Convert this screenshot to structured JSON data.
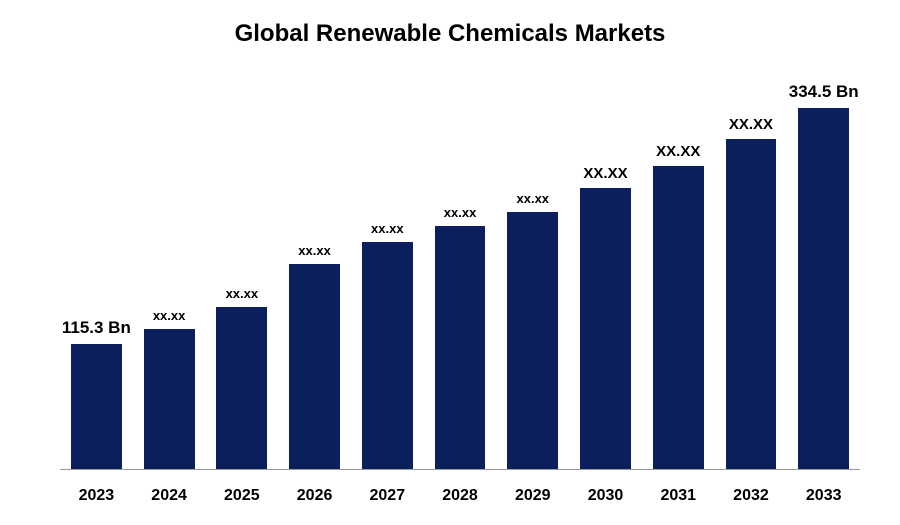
{
  "chart": {
    "type": "bar",
    "title": "Global Renewable Chemicals Markets",
    "title_fontsize": 24,
    "title_fontweight": 700,
    "title_color": "#000000",
    "background_color": "#ffffff",
    "bar_color": "#0a1f5c",
    "axis_line_color": "#999999",
    "ymax": 360,
    "ymin": 0,
    "bar_width_ratio": 0.7,
    "x_label_fontsize": 16,
    "x_label_fontweight": 700,
    "x_label_color": "#000000",
    "data_label_color": "#000000",
    "data_label_fontweight": 700,
    "first_last_label_fontsize": 17,
    "mid_label_fontsize_large": 15,
    "mid_label_fontsize_small": 13,
    "bars": [
      {
        "year": "2023",
        "value": 115.3,
        "label": "115.3 Bn",
        "label_fontsize": 17
      },
      {
        "year": "2024",
        "value": 130,
        "label": "xx.xx",
        "label_fontsize": 13
      },
      {
        "year": "2025",
        "value": 150,
        "label": "xx.xx",
        "label_fontsize": 13
      },
      {
        "year": "2026",
        "value": 190,
        "label": "xx.xx",
        "label_fontsize": 13
      },
      {
        "year": "2027",
        "value": 210,
        "label": "xx.xx",
        "label_fontsize": 13
      },
      {
        "year": "2028",
        "value": 225,
        "label": "xx.xx",
        "label_fontsize": 13
      },
      {
        "year": "2029",
        "value": 238,
        "label": "xx.xx",
        "label_fontsize": 13
      },
      {
        "year": "2030",
        "value": 260,
        "label": "XX.XX",
        "label_fontsize": 15
      },
      {
        "year": "2031",
        "value": 280,
        "label": "XX.XX",
        "label_fontsize": 15
      },
      {
        "year": "2032",
        "value": 305,
        "label": "XX.XX",
        "label_fontsize": 15
      },
      {
        "year": "2033",
        "value": 334.5,
        "label": "334.5 Bn",
        "label_fontsize": 17
      }
    ]
  }
}
